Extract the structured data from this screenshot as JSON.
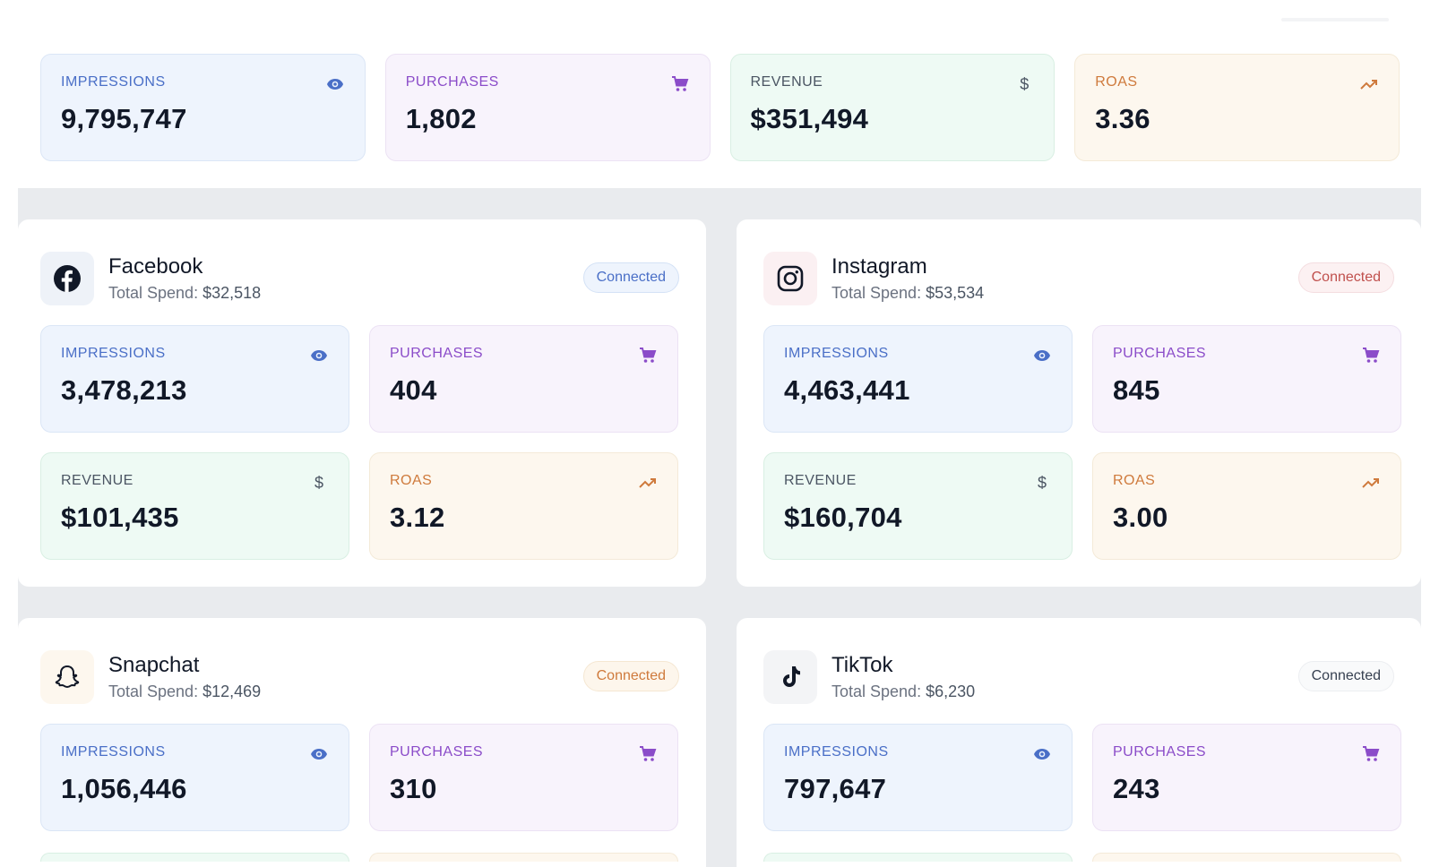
{
  "summary": {
    "impressions": {
      "label": "IMPRESSIONS",
      "value": "9,795,747",
      "icon": "eye-icon"
    },
    "purchases": {
      "label": "PURCHASES",
      "value": "1,802",
      "icon": "cart-icon"
    },
    "revenue": {
      "label": "REVENUE",
      "value": "$351,494",
      "icon": "dollar-icon"
    },
    "roas": {
      "label": "ROAS",
      "value": "3.36",
      "icon": "trending-up-icon"
    }
  },
  "platforms": {
    "facebook": {
      "name": "Facebook",
      "spend_label": "Total Spend:",
      "spend": "$32,518",
      "status": "Connected",
      "accent": "#4a6fc7",
      "impressions": {
        "label": "IMPRESSIONS",
        "value": "3,478,213"
      },
      "purchases": {
        "label": "PURCHASES",
        "value": "404"
      },
      "revenue": {
        "label": "REVENUE",
        "value": "$101,435"
      },
      "roas": {
        "label": "ROAS",
        "value": "3.12"
      }
    },
    "instagram": {
      "name": "Instagram",
      "spend_label": "Total Spend:",
      "spend": "$53,534",
      "status": "Connected",
      "accent": "#c0504d",
      "impressions": {
        "label": "IMPRESSIONS",
        "value": "4,463,441"
      },
      "purchases": {
        "label": "PURCHASES",
        "value": "845"
      },
      "revenue": {
        "label": "REVENUE",
        "value": "$160,704"
      },
      "roas": {
        "label": "ROAS",
        "value": "3.00"
      }
    },
    "snapchat": {
      "name": "Snapchat",
      "spend_label": "Total Spend:",
      "spend": "$12,469",
      "status": "Connected",
      "accent": "#cf7a3c",
      "impressions": {
        "label": "IMPRESSIONS",
        "value": "1,056,446"
      },
      "purchases": {
        "label": "PURCHASES",
        "value": "310"
      }
    },
    "tiktok": {
      "name": "TikTok",
      "spend_label": "Total Spend:",
      "spend": "$6,230",
      "status": "Connected",
      "accent": "#374151",
      "impressions": {
        "label": "IMPRESSIONS",
        "value": "797,647"
      },
      "purchases": {
        "label": "PURCHASES",
        "value": "243"
      }
    }
  }
}
